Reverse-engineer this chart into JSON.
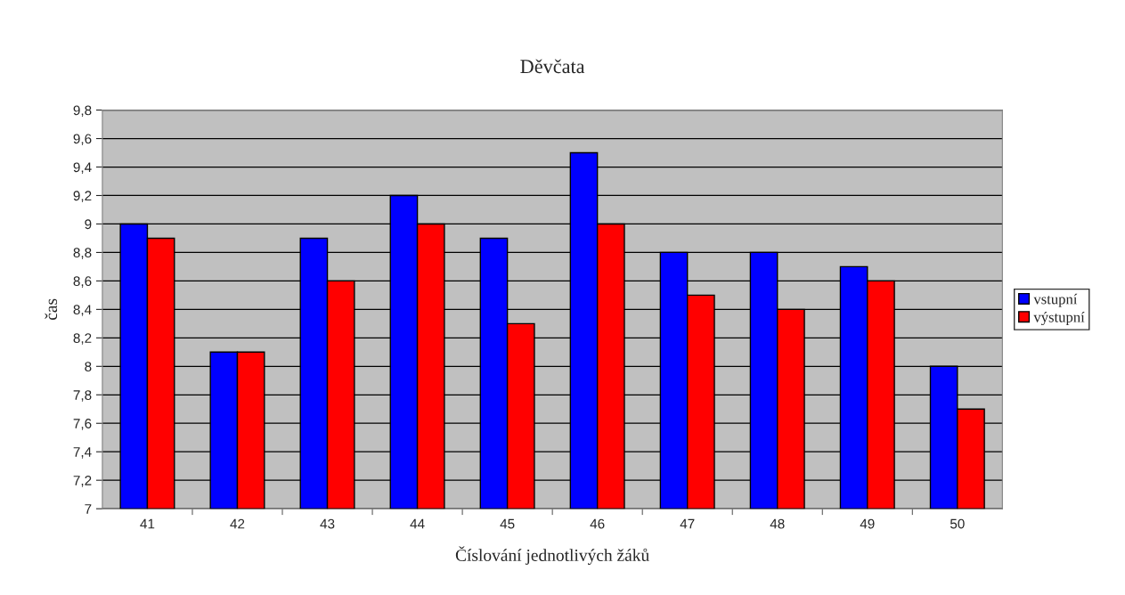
{
  "chart_data": {
    "type": "bar",
    "title": "Děvčata",
    "xlabel": "Číslování jednotlivých žáků",
    "ylabel": "čas",
    "categories": [
      "41",
      "42",
      "43",
      "44",
      "45",
      "46",
      "47",
      "48",
      "49",
      "50"
    ],
    "series": [
      {
        "name": "vstupní",
        "color": "#0000ff",
        "values": [
          9.0,
          8.1,
          8.9,
          9.2,
          8.9,
          9.5,
          8.8,
          8.8,
          8.7,
          8.0
        ]
      },
      {
        "name": "výstupní",
        "color": "#ff0000",
        "values": [
          8.9,
          8.1,
          8.6,
          9.0,
          8.3,
          9.0,
          8.5,
          8.4,
          8.6,
          7.7
        ]
      }
    ],
    "ylim": [
      7,
      9.8
    ],
    "yticks": [
      7,
      {
        "value": 7.2,
        "label": "7,2"
      },
      {
        "value": 7.4,
        "label": "7,4"
      },
      {
        "value": 7.6,
        "label": "7,6"
      },
      {
        "value": 7.8,
        "label": "7,8"
      },
      8,
      {
        "value": 8.2,
        "label": "8,2"
      },
      {
        "value": 8.4,
        "label": "8,4"
      },
      {
        "value": 8.6,
        "label": "8,6"
      },
      {
        "value": 8.8,
        "label": "8,8"
      },
      9,
      {
        "value": 9.2,
        "label": "9,2"
      },
      {
        "value": 9.4,
        "label": "9,4"
      },
      {
        "value": 9.6,
        "label": "9,6"
      },
      {
        "value": 9.8,
        "label": "9,8"
      }
    ],
    "grid": "y",
    "legend": "right"
  }
}
